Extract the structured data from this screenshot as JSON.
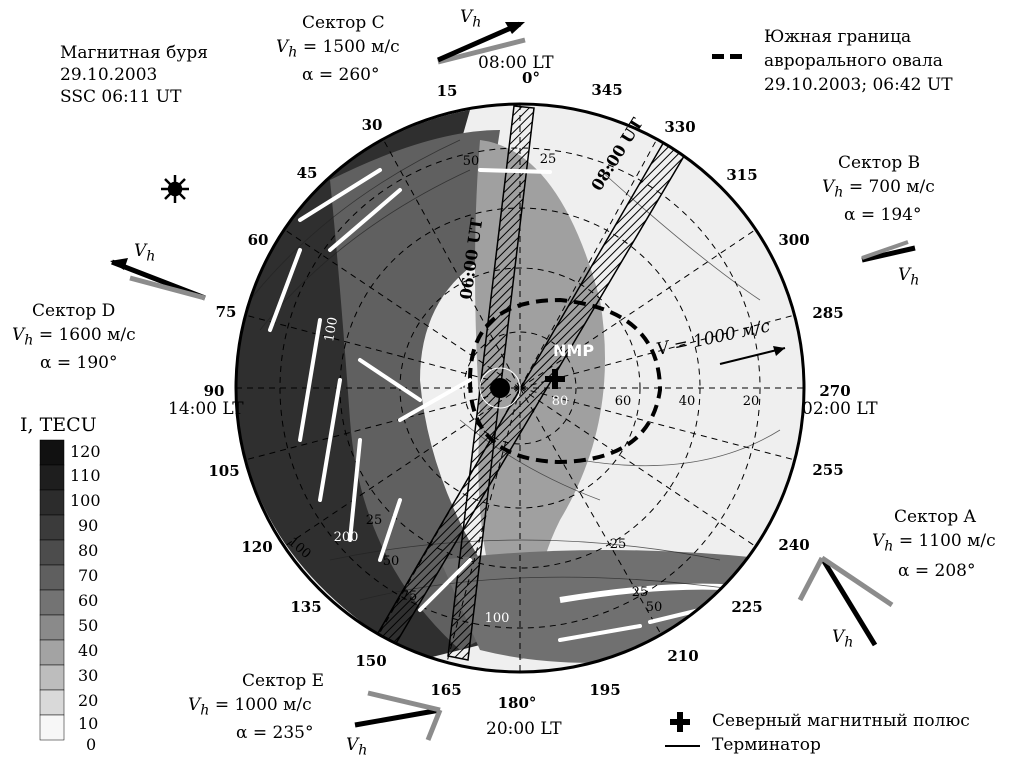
{
  "title": {
    "line1": "Магнитная буря",
    "line2": "29.10.2003",
    "line3": "SSC 06:11 UT"
  },
  "oval_legend": {
    "line1": "Южная граница",
    "line2": "аврорального овала",
    "line3": "29.10.2003; 06:42 UT"
  },
  "sectors": {
    "C": {
      "name": "Сектор C",
      "vh": "V",
      "vh_sub": "h",
      "speed": "= 1500 м/с",
      "alpha": "α = 260°"
    },
    "B": {
      "name": "Сектор B",
      "vh": "V",
      "vh_sub": "h",
      "speed": "= 700 м/с",
      "alpha": "α = 194°"
    },
    "D": {
      "name": "Сектор D",
      "vh": "V",
      "vh_sub": "h",
      "speed": "= 1600 м/с",
      "alpha": "α = 190°"
    },
    "A": {
      "name": "Сектор A",
      "vh": "V",
      "vh_sub": "h",
      "speed": "= 1100 м/с",
      "alpha": "α = 208°"
    },
    "E": {
      "name": "Сектор E",
      "vh": "V",
      "vh_sub": "h",
      "speed": "= 1000 м/с",
      "alpha": "α = 235°"
    }
  },
  "vh_label": "V",
  "vh_label_sub": "h",
  "local_time": {
    "top": "08:00 LT",
    "left": "14:00 LT",
    "right": "02:00 LT",
    "bottom": "20:00 LT"
  },
  "azimuths": [
    "0°",
    "345",
    "330",
    "315",
    "300",
    "285",
    "270",
    "255",
    "240",
    "225",
    "210",
    "195",
    "180°",
    "165",
    "150",
    "135",
    "120",
    "105",
    "90",
    "75",
    "60",
    "45",
    "30",
    "15"
  ],
  "latitudes": [
    "80",
    "60",
    "40",
    "20"
  ],
  "contour_labels": [
    "25",
    "25",
    "100",
    "100",
    "25",
    "50",
    "75",
    "200",
    "100",
    "25",
    "50",
    "50"
  ],
  "ut_labels": [
    "06:00 UT",
    "08:00 UT"
  ],
  "nmp": "NMP",
  "velocity_scale": "V = 1000 м/с",
  "colorbar": {
    "label": "I, TECU",
    "ticks": [
      "120",
      "110",
      "100",
      "90",
      "80",
      "70",
      "60",
      "50",
      "40",
      "30",
      "20",
      "10",
      "0"
    ]
  },
  "legend": {
    "pole": "Северный магнитный полюс",
    "terminator": "Терминатор"
  },
  "colors": {
    "shade_dark": "#2e2e2e",
    "shade_light": "#f0f0f0",
    "arrow": "#ffffff",
    "grey_arrow": "#8c8c8c"
  },
  "icons": [
    "sun-icon",
    "cross-icon"
  ]
}
